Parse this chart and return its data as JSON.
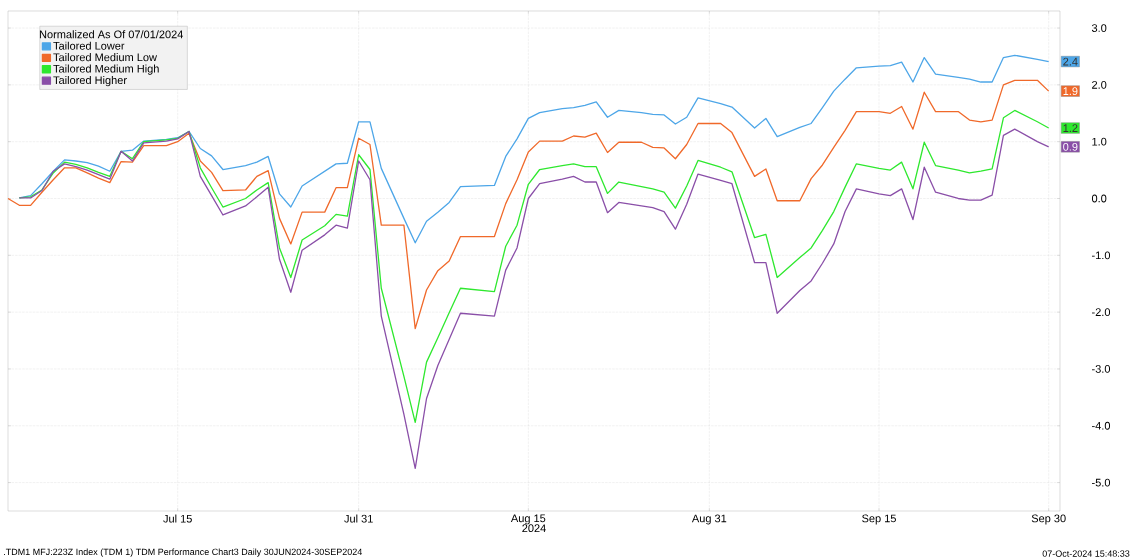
{
  "chart_data": {
    "type": "line",
    "legend_title": "Normalized As Of 07/01/2024",
    "xlabel": "2024",
    "annotations": [
      ".TDM1 MFJ:223Z Index (TDM 1) TDM Performance Chart3  Daily 30JUN2024-30SEP2024",
      "07-Oct-2024 15:48:33"
    ],
    "x": [
      "2024-06-30",
      "2024-07-01",
      "2024-07-02",
      "2024-07-03",
      "2024-07-04",
      "2024-07-05",
      "2024-07-06",
      "2024-07-07",
      "2024-07-08",
      "2024-07-09",
      "2024-07-10",
      "2024-07-11",
      "2024-07-12",
      "2024-07-14",
      "2024-07-15",
      "2024-07-16",
      "2024-07-17",
      "2024-07-18",
      "2024-07-19",
      "2024-07-21",
      "2024-07-22",
      "2024-07-23",
      "2024-07-24",
      "2024-07-25",
      "2024-07-26",
      "2024-07-28",
      "2024-07-29",
      "2024-07-30",
      "2024-07-31",
      "2024-08-01",
      "2024-08-02",
      "2024-08-04",
      "2024-08-05",
      "2024-08-06",
      "2024-08-07",
      "2024-08-08",
      "2024-08-09",
      "2024-08-12",
      "2024-08-13",
      "2024-08-14",
      "2024-08-15",
      "2024-08-16",
      "2024-08-18",
      "2024-08-19",
      "2024-08-20",
      "2024-08-21",
      "2024-08-22",
      "2024-08-23",
      "2024-08-25",
      "2024-08-26",
      "2024-08-27",
      "2024-08-28",
      "2024-08-29",
      "2024-08-30",
      "2024-09-01",
      "2024-09-02",
      "2024-09-04",
      "2024-09-05",
      "2024-09-06",
      "2024-09-08",
      "2024-09-09",
      "2024-09-10",
      "2024-09-11",
      "2024-09-12",
      "2024-09-13",
      "2024-09-15",
      "2024-09-16",
      "2024-09-17",
      "2024-09-18",
      "2024-09-19",
      "2024-09-20",
      "2024-09-22",
      "2024-09-23",
      "2024-09-24",
      "2024-09-25",
      "2024-09-26",
      "2024-09-27",
      "2024-09-29",
      "2024-09-30"
    ],
    "series": [
      {
        "name": "Tailored Lower",
        "color": "#4da6e8",
        "values": [
          null,
          0.01,
          0.05,
          0.26,
          0.48,
          0.68,
          0.66,
          0.63,
          0.57,
          0.48,
          0.83,
          0.85,
          1.01,
          1.04,
          1.07,
          1.18,
          0.88,
          0.75,
          0.51,
          0.58,
          0.64,
          0.74,
          0.08,
          -0.15,
          0.22,
          0.48,
          0.61,
          0.62,
          1.35,
          1.35,
          0.53,
          -0.35,
          -0.78,
          -0.4,
          -0.24,
          -0.07,
          0.21,
          0.23,
          0.74,
          1.05,
          1.41,
          1.51,
          1.58,
          1.6,
          1.64,
          1.7,
          1.43,
          1.55,
          1.51,
          1.48,
          1.47,
          1.31,
          1.43,
          1.77,
          1.67,
          1.61,
          1.24,
          1.41,
          1.09,
          1.25,
          1.32,
          1.6,
          1.89,
          2.1,
          2.3,
          2.33,
          2.34,
          2.4,
          2.05,
          2.48,
          2.19,
          2.13,
          2.1,
          2.05,
          2.05,
          2.48,
          2.52,
          2.45,
          2.41
        ],
        "value_labels": [
          null,
          null,
          null,
          null,
          null,
          null,
          null,
          null,
          null,
          null,
          null,
          null,
          null,
          null,
          null,
          null,
          null,
          null,
          null,
          null,
          null,
          null,
          null,
          null,
          null,
          null,
          null,
          null,
          null,
          null,
          null,
          null,
          null,
          null,
          null,
          null,
          null,
          null,
          null,
          null,
          null,
          null,
          null,
          null,
          null,
          null,
          null,
          null,
          null,
          null,
          null,
          null,
          null,
          null,
          null,
          null,
          null,
          null,
          null,
          null,
          null,
          null,
          null,
          null,
          null,
          null,
          null,
          null,
          null,
          null,
          null,
          null,
          null,
          null,
          null,
          null,
          null,
          null,
          "2.4"
        ]
      },
      {
        "name": "Tailored Medium Low",
        "color": "#f0692a",
        "values": [
          0,
          -0.12,
          -0.12,
          0.11,
          0.33,
          0.54,
          0.54,
          0.45,
          0.36,
          0.28,
          0.65,
          0.64,
          0.93,
          0.93,
          1.0,
          1.15,
          0.66,
          0.46,
          0.14,
          0.15,
          0.39,
          0.49,
          -0.35,
          -0.8,
          -0.24,
          -0.24,
          0.19,
          0.19,
          1.06,
          0.95,
          -0.47,
          -0.47,
          -2.29,
          -1.61,
          -1.27,
          -1.1,
          -0.67,
          -0.67,
          -0.09,
          0.33,
          0.82,
          1.01,
          1.01,
          1.1,
          1.08,
          1.15,
          0.81,
          0.99,
          0.99,
          0.9,
          0.89,
          0.7,
          0.95,
          1.32,
          1.32,
          1.16,
          0.39,
          0.52,
          -0.04,
          -0.04,
          0.35,
          0.59,
          0.9,
          1.2,
          1.53,
          1.53,
          1.5,
          1.62,
          1.22,
          1.87,
          1.53,
          1.53,
          1.38,
          1.35,
          1.38,
          2.0,
          2.08,
          2.08,
          1.89
        ],
        "value_labels": [
          null,
          null,
          null,
          null,
          null,
          null,
          null,
          null,
          null,
          null,
          null,
          null,
          null,
          null,
          null,
          null,
          null,
          null,
          null,
          null,
          null,
          null,
          null,
          null,
          null,
          null,
          null,
          null,
          null,
          null,
          null,
          null,
          null,
          null,
          null,
          null,
          null,
          null,
          null,
          null,
          null,
          null,
          null,
          null,
          null,
          null,
          null,
          null,
          null,
          null,
          null,
          null,
          null,
          null,
          null,
          null,
          null,
          null,
          null,
          null,
          null,
          null,
          null,
          null,
          null,
          null,
          null,
          null,
          null,
          null,
          null,
          null,
          null,
          null,
          null,
          null,
          null,
          null,
          "1.9"
        ]
      },
      {
        "name": "Tailored Medium High",
        "color": "#2ee82e",
        "values": [
          null,
          0.01,
          0.03,
          0.15,
          0.45,
          0.64,
          0.6,
          0.54,
          0.46,
          0.39,
          0.83,
          0.7,
          1.0,
          1.03,
          1.06,
          1.18,
          0.54,
          0.19,
          -0.15,
          0.0,
          0.15,
          0.28,
          -0.87,
          -1.39,
          -0.73,
          -0.48,
          -0.28,
          -0.31,
          0.77,
          0.51,
          -1.58,
          -3.13,
          -3.94,
          -2.88,
          -2.45,
          -2.01,
          -1.58,
          -1.64,
          -0.84,
          -0.47,
          0.25,
          0.51,
          0.58,
          0.61,
          0.56,
          0.56,
          0.09,
          0.29,
          0.21,
          0.17,
          0.11,
          -0.17,
          0.22,
          0.67,
          0.55,
          0.47,
          -0.69,
          -0.63,
          -1.39,
          -1.04,
          -0.87,
          -0.56,
          -0.23,
          0.2,
          0.61,
          0.53,
          0.5,
          0.64,
          0.17,
          0.99,
          0.58,
          0.5,
          0.45,
          0.48,
          0.52,
          1.42,
          1.55,
          1.35,
          1.24
        ],
        "value_labels": [
          null,
          null,
          null,
          null,
          null,
          null,
          null,
          null,
          null,
          null,
          null,
          null,
          null,
          null,
          null,
          null,
          null,
          null,
          null,
          null,
          null,
          null,
          null,
          null,
          null,
          null,
          null,
          null,
          null,
          null,
          null,
          null,
          null,
          null,
          null,
          null,
          null,
          null,
          null,
          null,
          null,
          null,
          null,
          null,
          null,
          null,
          null,
          null,
          null,
          null,
          null,
          null,
          null,
          null,
          null,
          null,
          null,
          null,
          null,
          null,
          null,
          null,
          null,
          null,
          null,
          null,
          null,
          null,
          null,
          null,
          null,
          null,
          null,
          null,
          null,
          null,
          null,
          null,
          "1.2"
        ]
      },
      {
        "name": "Tailored Higher",
        "color": "#8a4fa8",
        "values": [
          null,
          0.01,
          0.01,
          0.14,
          0.48,
          0.61,
          0.56,
          0.5,
          0.42,
          0.34,
          0.83,
          0.66,
          0.98,
          1.01,
          1.05,
          1.18,
          0.39,
          0.05,
          -0.29,
          -0.13,
          0.03,
          0.2,
          -1.07,
          -1.65,
          -0.91,
          -0.64,
          -0.47,
          -0.52,
          0.66,
          0.33,
          -2.07,
          -3.8,
          -4.75,
          -3.52,
          -2.94,
          -2.48,
          -2.02,
          -2.07,
          -1.26,
          -0.87,
          0.0,
          0.26,
          0.34,
          0.39,
          0.29,
          0.29,
          -0.25,
          -0.07,
          -0.13,
          -0.16,
          -0.23,
          -0.54,
          -0.1,
          0.43,
          0.32,
          0.26,
          -1.13,
          -1.13,
          -2.02,
          -1.62,
          -1.45,
          -1.14,
          -0.8,
          -0.23,
          0.17,
          0.08,
          0.05,
          0.17,
          -0.37,
          0.55,
          0.11,
          0.0,
          -0.03,
          -0.03,
          0.06,
          1.11,
          1.22,
          1.0,
          0.91
        ],
        "value_labels": [
          null,
          null,
          null,
          null,
          null,
          null,
          null,
          null,
          null,
          null,
          null,
          null,
          null,
          null,
          null,
          null,
          null,
          null,
          null,
          null,
          null,
          null,
          null,
          null,
          null,
          null,
          null,
          null,
          null,
          null,
          null,
          null,
          null,
          null,
          null,
          null,
          null,
          null,
          null,
          null,
          null,
          null,
          null,
          null,
          null,
          null,
          null,
          null,
          null,
          null,
          null,
          null,
          null,
          null,
          null,
          null,
          null,
          null,
          null,
          null,
          null,
          null,
          null,
          null,
          null,
          null,
          null,
          null,
          null,
          null,
          null,
          null,
          null,
          null,
          null,
          null,
          null,
          null,
          "0.9"
        ]
      }
    ],
    "xlim": [
      "2024-06-30",
      "2024-10-01"
    ],
    "xticks": [
      {
        "value": "2024-07-15",
        "label": "Jul 15"
      },
      {
        "value": "2024-07-31",
        "label": "Jul 31"
      },
      {
        "value": "2024-08-15",
        "label": "Aug 15"
      },
      {
        "value": "2024-08-31",
        "label": "Aug 31"
      },
      {
        "value": "2024-09-15",
        "label": "Sep 15"
      },
      {
        "value": "2024-09-30",
        "label": "Sep 30"
      }
    ],
    "ylim": [
      -5.5,
      3.3
    ],
    "yticks": [
      {
        "value": -5,
        "label": "-5.0"
      },
      {
        "value": -4,
        "label": "-4.0"
      },
      {
        "value": -3,
        "label": "-3.0"
      },
      {
        "value": -2,
        "label": "-2.0"
      },
      {
        "value": -1,
        "label": "-1.0"
      },
      {
        "value": 0,
        "label": "0.0"
      },
      {
        "value": 1,
        "label": "1.0"
      },
      {
        "value": 2,
        "label": "2.0"
      },
      {
        "value": 3,
        "label": "3.0"
      }
    ],
    "grid": true,
    "legend": "top left",
    "marker": "none",
    "line_style": "solid"
  }
}
